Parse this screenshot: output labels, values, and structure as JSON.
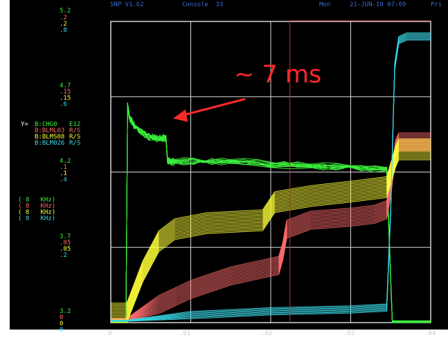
{
  "header": {
    "title": "SNP V1.62",
    "console": "Console  33",
    "day": "Mon",
    "datetime": "21-JUN-10 07:09",
    "print_label": "Pri"
  },
  "annotation": {
    "text": "~ 7 ms"
  },
  "y_legend": {
    "prefix": "Y=",
    "entries": [
      {
        "name": "B:CHG0",
        "unit": "E12",
        "color": "#3df23d"
      },
      {
        "name": "B:BLML03",
        "unit": "R/S",
        "color": "#ff6b6b"
      },
      {
        "name": "B:BLMS08",
        "unit": "R/S",
        "color": "#ffff3a"
      },
      {
        "name": "B:BLM026",
        "unit": "R/S",
        "color": "#3ad7e6"
      }
    ]
  },
  "rate_labels": [
    {
      "text": "( 8   KHz)",
      "color": "#3df23d"
    },
    {
      "text": "( 8   KHz)",
      "color": "#ff6b6b"
    },
    {
      "text": "( 8   KHz)",
      "color": "#ffff3a"
    },
    {
      "text": "( 8   KHz)",
      "color": "#3ad7e6"
    }
  ],
  "y_scales": [
    {
      "values": [
        "5.2",
        ".2",
        ".2",
        ".8"
      ]
    },
    {
      "values": [
        "4.7",
        ".15",
        ".15",
        ".6"
      ]
    },
    {
      "values": [
        "4.2",
        ".1",
        ".1",
        ".4"
      ]
    },
    {
      "values": [
        "3.7",
        ".05",
        ".05",
        ".2"
      ]
    },
    {
      "values": [
        "3.2",
        "0",
        "0",
        "0"
      ]
    }
  ],
  "x_ticks": [
    "0",
    ".01",
    ".02",
    ".03",
    ".04"
  ],
  "colors": {
    "green": "#3df23d",
    "red": "#ff6b6b",
    "yellow": "#ffff3a",
    "cyan": "#3ad7e6",
    "grid": "#d8d8d8",
    "header": "#3a6bd4",
    "annotation": "#ff2a2a"
  },
  "chart_data": {
    "type": "line",
    "x_range": [
      0,
      0.04
    ],
    "x_ticks": [
      0,
      0.01,
      0.02,
      0.03,
      0.04
    ],
    "grid": true,
    "series": [
      {
        "name": "B:CHG0",
        "x": [
          0,
          0.0019,
          0.0021,
          0.0023,
          0.003,
          0.0045,
          0.006,
          0.0069,
          0.0071,
          0.008,
          0.015,
          0.025,
          0.0345,
          0.0352,
          0.0356,
          0.04
        ],
        "y": [
          3.2,
          3.2,
          4.65,
          4.57,
          4.5,
          4.44,
          4.42,
          4.43,
          4.27,
          4.27,
          4.27,
          4.24,
          4.22,
          3.2,
          3.2,
          3.2
        ]
      },
      {
        "name": "B:BLML03",
        "x": [
          0,
          0.002,
          0.006,
          0.01,
          0.015,
          0.021,
          0.0215,
          0.022,
          0.025,
          0.03,
          0.033,
          0.0345,
          0.035,
          0.0356,
          0.036,
          0.038,
          0.04
        ],
        "y": [
          0.002,
          0.002,
          0.012,
          0.022,
          0.031,
          0.038,
          0.047,
          0.062,
          0.068,
          0.07,
          0.072,
          0.075,
          0.09,
          0.115,
          0.12,
          0.12,
          0.12
        ]
      },
      {
        "name": "B:BLMS08",
        "x": [
          0,
          0.002,
          0.004,
          0.006,
          0.008,
          0.012,
          0.019,
          0.0205,
          0.025,
          0.03,
          0.0345,
          0.0356,
          0.036,
          0.04
        ],
        "y": [
          0.006,
          0.006,
          0.034,
          0.054,
          0.062,
          0.066,
          0.068,
          0.08,
          0.084,
          0.087,
          0.09,
          0.11,
          0.115,
          0.115
        ]
      },
      {
        "name": "B:BLM026",
        "x": [
          0,
          0.002,
          0.01,
          0.02,
          0.03,
          0.0345,
          0.035,
          0.0355,
          0.036,
          0.037,
          0.04
        ],
        "y": [
          0.005,
          0.005,
          0.02,
          0.03,
          0.035,
          0.04,
          0.3,
          0.68,
          0.75,
          0.76,
          0.76
        ]
      }
    ]
  }
}
